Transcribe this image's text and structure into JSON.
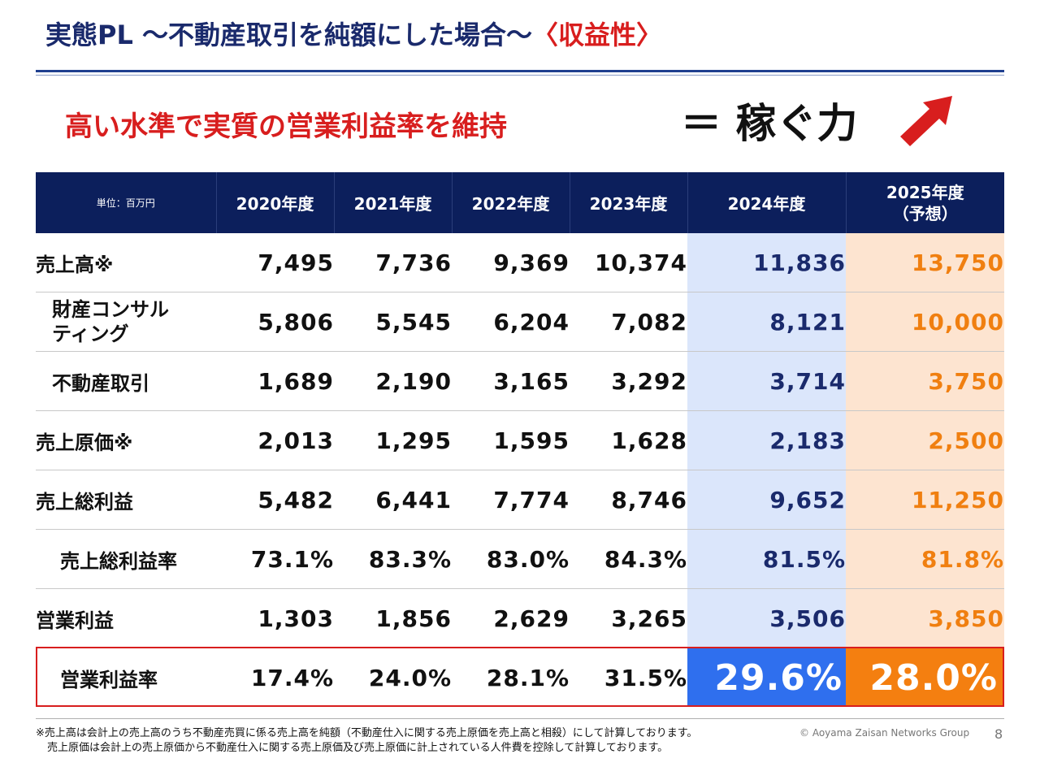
{
  "title": {
    "main": "実態PL ～不動産取引を純額にした場合～",
    "accent": "〈収益性〉"
  },
  "tagline": "高い水準で実質の営業利益率を維持",
  "kasegu": "＝ 稼ぐ力",
  "colors": {
    "navy": "#0c1f5c",
    "red": "#d81e1e",
    "blue_2024": "#2f6fee",
    "orange_2025": "#f47f10",
    "light_blue": "#dbe6fb",
    "light_orange": "#fde4d0"
  },
  "table": {
    "unit": "単位：百万円",
    "headers": [
      "2020年度",
      "2021年度",
      "2022年度",
      "2023年度",
      "2024年度",
      "2025年度",
      "（予想）"
    ],
    "rows": [
      {
        "label": "売上高※",
        "values": [
          "7,495",
          "7,736",
          "9,369",
          "10,374",
          "11,836",
          "13,750"
        ]
      },
      {
        "label": "財産コンサル",
        "label2": "ティング",
        "values": [
          "5,806",
          "5,545",
          "6,204",
          "7,082",
          "8,121",
          "10,000"
        ]
      },
      {
        "label": "不動産取引",
        "values": [
          "1,689",
          "2,190",
          "3,165",
          "3,292",
          "3,714",
          "3,750"
        ]
      },
      {
        "label": "売上原価※",
        "values": [
          "2,013",
          "1,295",
          "1,595",
          "1,628",
          "2,183",
          "2,500"
        ]
      },
      {
        "label": "売上総利益",
        "values": [
          "5,482",
          "6,441",
          "7,774",
          "8,746",
          "9,652",
          "11,250"
        ]
      },
      {
        "label": "売上総利益率",
        "values": [
          "73.1%",
          "83.3%",
          "83.0%",
          "84.3%",
          "81.5%",
          "81.8%"
        ]
      },
      {
        "label": "営業利益",
        "values": [
          "1,303",
          "1,856",
          "2,629",
          "3,265",
          "3,506",
          "3,850"
        ]
      },
      {
        "label": "営業利益率",
        "values": [
          "17.4%",
          "24.0%",
          "28.1%",
          "31.5%",
          "29.6%",
          "28.0%"
        ]
      }
    ]
  },
  "notes": [
    "※売上高は会計上の売上高のうち不動産売買に係る売上高を純額（不動産仕入に関する売上原価を売上高と相殺）にして計算しております。",
    "売上原価は会計上の売上原価から不動産仕入に関する売上原価及び売上原価に計上されている人件費を控除して計算しております。"
  ],
  "copyright": "© Aoyama Zaisan Networks Group",
  "page_number": "8",
  "icons": {
    "trend": "trend-up-arrow-icon"
  }
}
